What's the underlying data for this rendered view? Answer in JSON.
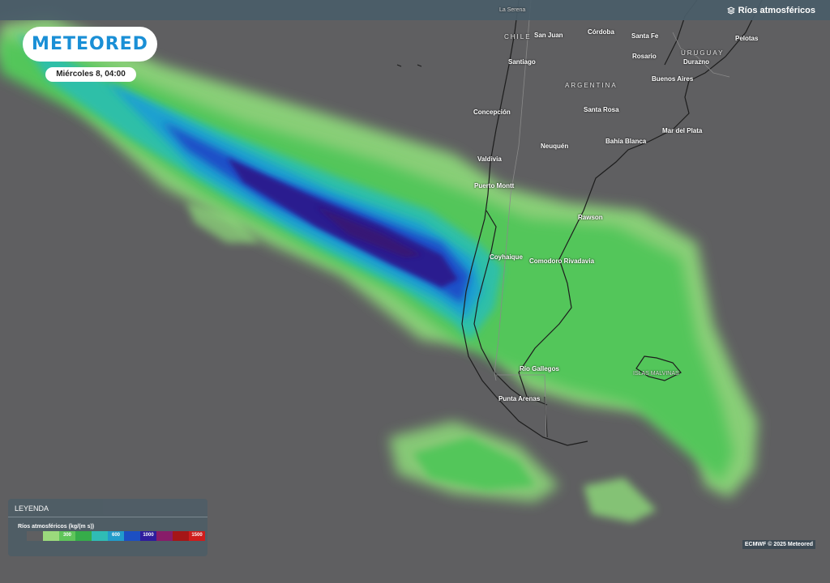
{
  "header": {
    "layer_title": "Ríos atmosféricos"
  },
  "logo": {
    "text": "METEORED"
  },
  "timestamp": "Miércoles 8, 04:00",
  "places": [
    {
      "name": "La Serena",
      "kind": "small"
    },
    {
      "name": "CHILE",
      "kind": "country"
    },
    {
      "name": "San Juan",
      "kind": "city"
    },
    {
      "name": "Córdoba",
      "kind": "city"
    },
    {
      "name": "Santa Fe",
      "kind": "city"
    },
    {
      "name": "URUGUAY",
      "kind": "country"
    },
    {
      "name": "Pelotas",
      "kind": "city"
    },
    {
      "name": "Santiago",
      "kind": "city"
    },
    {
      "name": "Rosario",
      "kind": "city"
    },
    {
      "name": "Durazno",
      "kind": "city"
    },
    {
      "name": "ARGENTINA",
      "kind": "country"
    },
    {
      "name": "Buenos Aires",
      "kind": "city"
    },
    {
      "name": "Concepción",
      "kind": "city"
    },
    {
      "name": "Santa Rosa",
      "kind": "city"
    },
    {
      "name": "Mar del Plata",
      "kind": "city"
    },
    {
      "name": "Neuquén",
      "kind": "city"
    },
    {
      "name": "Bahía Blanca",
      "kind": "city"
    },
    {
      "name": "Valdivia",
      "kind": "city"
    },
    {
      "name": "Puerto Montt",
      "kind": "city"
    },
    {
      "name": "Rawson",
      "kind": "city"
    },
    {
      "name": "Coyhaique",
      "kind": "city"
    },
    {
      "name": "Comodoro Rivadavia",
      "kind": "city"
    },
    {
      "name": "Río Gallegos",
      "kind": "city"
    },
    {
      "name": "ISLAS MALVINAS",
      "kind": "small"
    },
    {
      "name": "Punta Arenas",
      "kind": "city"
    }
  ],
  "legend": {
    "title": "LEYENDA",
    "variable": "Ríos atmosféricos (kg/(m s))",
    "scale": [
      {
        "color": "#5f5f61",
        "label": ""
      },
      {
        "color": "#9ede7e",
        "label": ""
      },
      {
        "color": "#5fca5a",
        "label": "300"
      },
      {
        "color": "#35b04a",
        "label": ""
      },
      {
        "color": "#2ec0b9",
        "label": ""
      },
      {
        "color": "#1f9fd0",
        "label": "600"
      },
      {
        "color": "#1a4fc8",
        "label": ""
      },
      {
        "color": "#2d1aa0",
        "label": "1000"
      },
      {
        "color": "#8a1a6a",
        "label": ""
      },
      {
        "color": "#a81414",
        "label": ""
      },
      {
        "color": "#d41a1a",
        "label": "1500"
      }
    ]
  },
  "credit": "ECMWF © 2025 Meteored",
  "colors": {
    "background": "#5f5f61",
    "brand": "#1a8fd6",
    "topbar": "#4a5d69"
  }
}
